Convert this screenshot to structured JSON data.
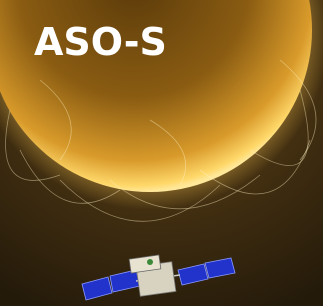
{
  "title": "ASO-S"
}
